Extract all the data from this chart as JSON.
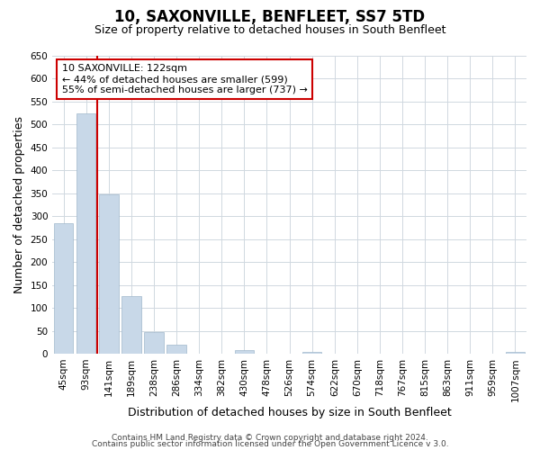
{
  "title": "10, SAXONVILLE, BENFLEET, SS7 5TD",
  "subtitle": "Size of property relative to detached houses in South Benfleet",
  "xlabel": "Distribution of detached houses by size in South Benfleet",
  "ylabel": "Number of detached properties",
  "footer_line1": "Contains HM Land Registry data © Crown copyright and database right 2024.",
  "footer_line2": "Contains public sector information licensed under the Open Government Licence v 3.0.",
  "categories": [
    "45sqm",
    "93sqm",
    "141sqm",
    "189sqm",
    "238sqm",
    "286sqm",
    "334sqm",
    "382sqm",
    "430sqm",
    "478sqm",
    "526sqm",
    "574sqm",
    "622sqm",
    "670sqm",
    "718sqm",
    "767sqm",
    "815sqm",
    "863sqm",
    "911sqm",
    "959sqm",
    "1007sqm"
  ],
  "values": [
    285,
    523,
    347,
    125,
    48,
    20,
    0,
    0,
    8,
    0,
    0,
    4,
    0,
    0,
    0,
    0,
    0,
    0,
    0,
    0,
    5
  ],
  "bar_color": "#c8d8e8",
  "bar_edge_color": "#a0b8cc",
  "annotation_title": "10 SAXONVILLE: 122sqm",
  "annotation_line1": "← 44% of detached houses are smaller (599)",
  "annotation_line2": "55% of semi-detached houses are larger (737) →",
  "annotation_box_color": "#ffffff",
  "annotation_box_edge": "#cc0000",
  "redline_color": "#cc0000",
  "ylim": [
    0,
    650
  ],
  "yticks": [
    0,
    50,
    100,
    150,
    200,
    250,
    300,
    350,
    400,
    450,
    500,
    550,
    600,
    650
  ],
  "title_fontsize": 12,
  "subtitle_fontsize": 9,
  "axis_label_fontsize": 9,
  "tick_fontsize": 7.5,
  "footer_fontsize": 6.5
}
